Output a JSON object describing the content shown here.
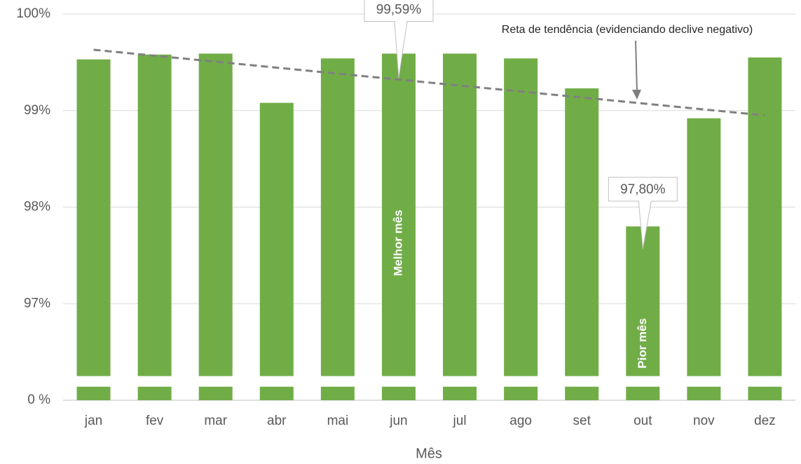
{
  "chart_data": {
    "type": "bar",
    "categories": [
      "jan",
      "fev",
      "mar",
      "abr",
      "mai",
      "jun",
      "jul",
      "ago",
      "set",
      "out",
      "nov",
      "dez"
    ],
    "values": [
      99.53,
      99.58,
      99.59,
      99.08,
      99.54,
      99.59,
      99.59,
      99.54,
      99.23,
      97.8,
      98.92,
      99.55
    ],
    "value_labels": [
      null,
      null,
      null,
      null,
      null,
      "99,59%",
      null,
      null,
      null,
      "97,80%",
      null,
      null
    ],
    "color": "#70ad47",
    "x_label": "Mês",
    "ylim": [
      0,
      100
    ],
    "yticks": [
      {
        "value": 0,
        "label": "0 %"
      },
      {
        "value": 97,
        "label": "97%"
      },
      {
        "value": 98,
        "label": "98%"
      },
      {
        "value": 99,
        "label": "99%"
      },
      {
        "value": 100,
        "label": "100%"
      }
    ],
    "broken_axis": true,
    "grid": true,
    "trendline": {
      "start": 99.63,
      "end": 98.95,
      "color": "#808080",
      "label": "Reta de tendência (evidenciando declive negativo)"
    },
    "annotations": [
      {
        "text": "Melhor mês",
        "category": "jun"
      },
      {
        "text": "Pior mês",
        "category": "out"
      }
    ]
  }
}
